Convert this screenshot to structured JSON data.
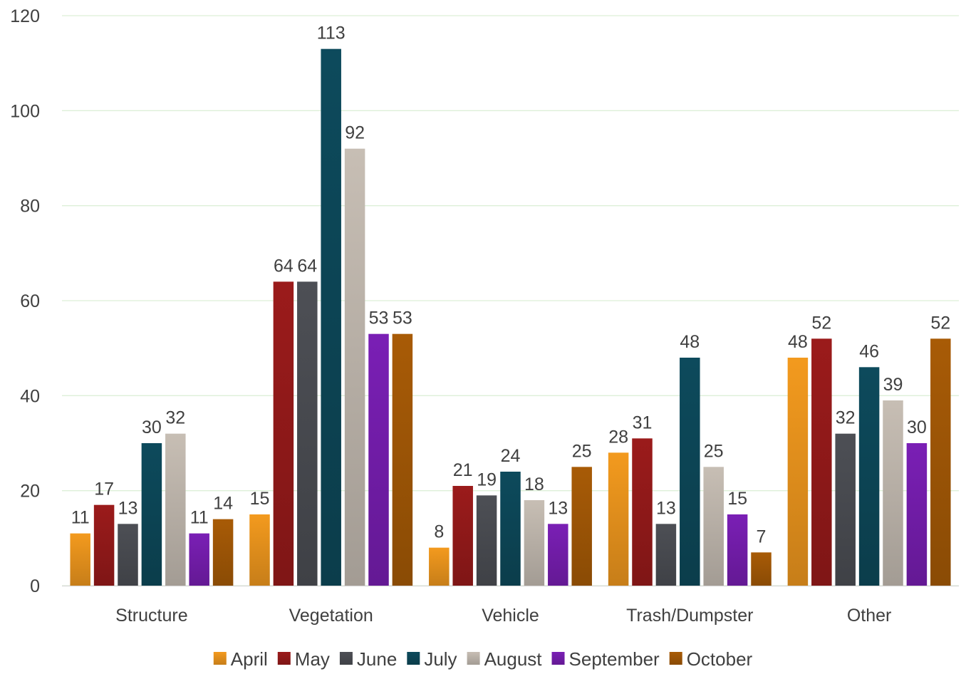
{
  "chart_data": {
    "type": "bar",
    "title": "",
    "xlabel": "",
    "ylabel": "",
    "ylim": [
      0,
      120
    ],
    "yticks": [
      "0",
      "20",
      "40",
      "60",
      "80",
      "100",
      "120"
    ],
    "grid": true,
    "legend_position": "bottom",
    "categories": [
      "Structure",
      "Vegetation",
      "Vehicle",
      "Trash/Dumpster",
      "Other"
    ],
    "series": [
      {
        "name": "April",
        "color": "#F39A1E",
        "values": [
          11,
          15,
          8,
          28,
          48
        ]
      },
      {
        "name": "May",
        "color": "#9B1B1B",
        "values": [
          17,
          64,
          21,
          31,
          52
        ]
      },
      {
        "name": "June",
        "color": "#4D4F55",
        "values": [
          13,
          64,
          19,
          13,
          32
        ]
      },
      {
        "name": "July",
        "color": "#0D4A5C",
        "values": [
          30,
          113,
          24,
          48,
          46
        ]
      },
      {
        "name": "August",
        "color": "#C7BEB4",
        "values": [
          32,
          92,
          18,
          25,
          39
        ]
      },
      {
        "name": "September",
        "color": "#7A1FB5",
        "values": [
          11,
          53,
          13,
          15,
          30
        ]
      },
      {
        "name": "October",
        "color": "#A85B06",
        "values": [
          14,
          53,
          25,
          7,
          52
        ]
      }
    ]
  }
}
